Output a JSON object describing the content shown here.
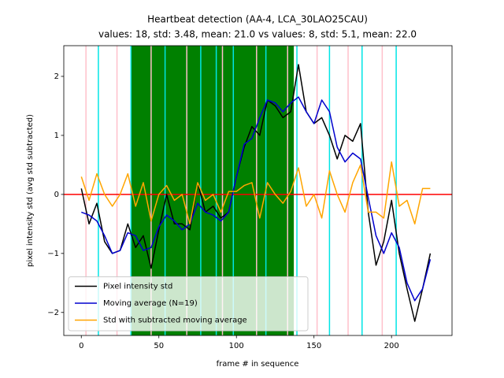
{
  "chart_data": {
    "type": "line",
    "title": "Heartbeat detection (AA-4, LCA_30LAO25CAU)",
    "subtitle": "values: 18, std: 3.48, mean: 21.0 vs values: 8, std: 5.1, mean: 22.0",
    "x_label": "frame # in sequence",
    "y_label": "pixel intensity std (avg std subtracted)",
    "x": [
      0,
      5,
      10,
      15,
      20,
      25,
      30,
      35,
      40,
      45,
      50,
      55,
      60,
      65,
      70,
      75,
      80,
      85,
      90,
      95,
      100,
      105,
      110,
      115,
      120,
      125,
      130,
      135,
      140,
      145,
      150,
      155,
      160,
      165,
      170,
      175,
      180,
      185,
      190,
      195,
      200,
      205,
      210,
      215,
      220,
      225
    ],
    "series": [
      {
        "name": "Pixel intensity std",
        "color": "#000000",
        "values": [
          0.1,
          -0.5,
          -0.15,
          -0.8,
          -1.0,
          -0.95,
          -0.5,
          -0.9,
          -0.7,
          -1.25,
          -0.6,
          0.0,
          -0.5,
          -0.5,
          -0.6,
          0.2,
          -0.3,
          -0.2,
          -0.4,
          -0.3,
          0.3,
          0.8,
          1.15,
          1.0,
          1.6,
          1.5,
          1.3,
          1.4,
          2.2,
          1.4,
          1.2,
          1.3,
          1.0,
          0.6,
          1.0,
          0.9,
          1.2,
          -0.3,
          -1.2,
          -0.8,
          -0.1,
          -1.0,
          -1.6,
          -2.15,
          -1.6,
          -1.0
        ]
      },
      {
        "name": "Moving average (N=19)",
        "color": "#0000cd",
        "values": [
          -0.3,
          -0.35,
          -0.45,
          -0.7,
          -1.0,
          -0.95,
          -0.65,
          -0.7,
          -0.95,
          -0.9,
          -0.55,
          -0.35,
          -0.45,
          -0.6,
          -0.5,
          -0.15,
          -0.3,
          -0.35,
          -0.45,
          -0.3,
          0.3,
          0.85,
          0.95,
          1.3,
          1.6,
          1.55,
          1.4,
          1.55,
          1.65,
          1.4,
          1.2,
          1.6,
          1.4,
          0.8,
          0.55,
          0.7,
          0.6,
          -0.05,
          -0.7,
          -1.0,
          -0.65,
          -0.9,
          -1.5,
          -1.8,
          -1.6,
          -1.1
        ]
      },
      {
        "name": "Std with subtracted moving average",
        "color": "#ffa500",
        "values": [
          0.3,
          -0.1,
          0.35,
          0.0,
          -0.2,
          0.0,
          0.35,
          -0.2,
          0.2,
          -0.45,
          0.0,
          0.15,
          -0.1,
          0.0,
          -0.5,
          0.2,
          -0.1,
          0.0,
          -0.3,
          0.05,
          0.05,
          0.15,
          0.2,
          -0.4,
          0.2,
          0.0,
          -0.15,
          0.05,
          0.45,
          -0.2,
          0.0,
          -0.4,
          0.4,
          0.0,
          -0.3,
          0.2,
          0.5,
          -0.3,
          -0.3,
          -0.4,
          0.55,
          -0.2,
          -0.1,
          -0.5,
          0.1,
          0.1
        ]
      }
    ],
    "shaded_span": {
      "xlim": [
        32,
        137
      ],
      "color": "#008000"
    },
    "pink_lines": {
      "color": "#ffc0cb",
      "x": [
        3,
        23,
        45,
        68,
        91,
        113,
        133,
        152,
        172,
        194
      ]
    },
    "cyan_lines": {
      "color": "#00e5e5",
      "x": [
        11,
        32,
        54,
        77,
        87,
        98,
        119,
        139,
        160,
        181,
        203
      ]
    },
    "hline": {
      "y": 0,
      "color": "#ff0000"
    },
    "xlim": [
      -11.3,
      239
    ],
    "ylim": [
      -2.39,
      2.52
    ],
    "xticks": [
      0,
      50,
      100,
      150,
      200
    ],
    "yticks": [
      {
        "value": -2,
        "label": "−2"
      },
      {
        "value": -1,
        "label": "−1"
      },
      0,
      1,
      2
    ],
    "legend_loc": "lower left"
  }
}
